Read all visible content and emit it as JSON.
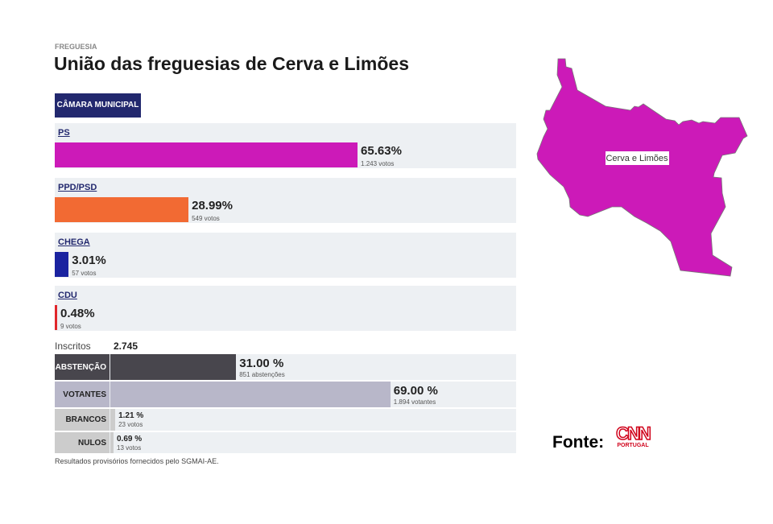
{
  "header": {
    "kicker": "FREGUESIA",
    "title": "União das freguesias de Cerva e Limões"
  },
  "tab": {
    "label": "CÂMARA MUNICIPAL"
  },
  "parties": [
    {
      "name": "PS",
      "percent": 65.63,
      "percent_label": "65.63%",
      "votes": "1.243 votos",
      "color": "#cc1ab8"
    },
    {
      "name": "PPD/PSD",
      "percent": 28.99,
      "percent_label": "28.99%",
      "votes": "549 votos",
      "color": "#f26a33"
    },
    {
      "name": "CHEGA",
      "percent": 3.01,
      "percent_label": "3.01%",
      "votes": "57 votos",
      "color": "#1a23a0"
    },
    {
      "name": "CDU",
      "percent": 0.48,
      "percent_label": "0.48%",
      "votes": "9 votos",
      "color": "#e0262b"
    }
  ],
  "turnout": {
    "inscritos_label": "Inscritos",
    "inscritos_value": "2.745",
    "rows": [
      {
        "label": "ABSTENÇÃO",
        "percent": 31.0,
        "percent_label": "31.00 %",
        "sub": "851 abstenções",
        "color": "#48464d",
        "label_bg": "#48464d",
        "label_color": "#ffffff"
      },
      {
        "label": "VOTANTES",
        "percent": 69.0,
        "percent_label": "69.00 %",
        "sub": "1.894 votantes",
        "color": "#b8b7c9",
        "label_bg": "#b8b7c9",
        "label_color": "#222222"
      },
      {
        "label": "BRANCOS",
        "percent": 1.21,
        "percent_label": "1.21 %",
        "sub": "23 votos",
        "color": "#cccccc",
        "label_bg": "#cccccc",
        "label_color": "#222222"
      },
      {
        "label": "NULOS",
        "percent": 0.69,
        "percent_label": "0.69 %",
        "sub": "13 votos",
        "color": "#cccccc",
        "label_bg": "#cccccc",
        "label_color": "#222222"
      }
    ]
  },
  "footnote": "Resultados provisórios fornecidos pelo SGMAI-AE.",
  "map": {
    "region_label": "Cerva e Limões",
    "fill": "#cc1ab8"
  },
  "source": {
    "label": "Fonte:",
    "logo_text": "CNN",
    "logo_sub": "PORTUGAL"
  }
}
